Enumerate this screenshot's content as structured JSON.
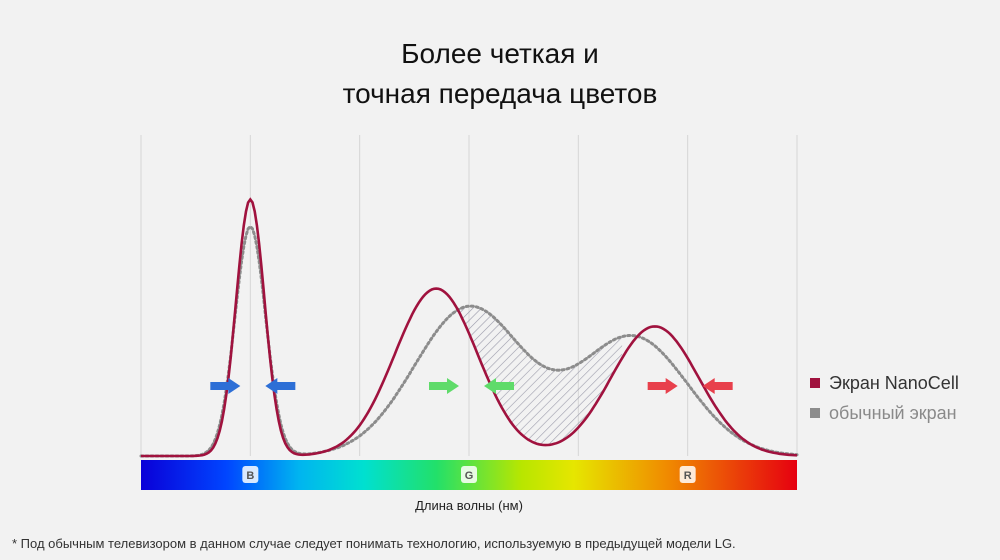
{
  "title": {
    "line1": "Более четкая и",
    "line2": "точная передача цветов"
  },
  "legend": {
    "nanocell": "Экран NanoCell",
    "regular": "обычный экран"
  },
  "footnote": "* Под обычным телевизором в данном случае следует понимать технологию, используемую в предыдущей модели LG.",
  "colors": {
    "nanocell": "#a0123e",
    "regular": "#8c8c8c",
    "blue_arrow": "#2d6fd6",
    "green_arrow": "#5fdb6a",
    "red_arrow": "#e8404c"
  },
  "chart_data": {
    "type": "line",
    "xlabel": "Длина волны (нм)",
    "ylabel": "",
    "spectrum_labels": [
      "B",
      "G",
      "R"
    ],
    "x": [
      0,
      1,
      2,
      3,
      4,
      5,
      6
    ],
    "xlim": [
      0,
      6
    ],
    "ylim": [
      0,
      1
    ],
    "grid": true,
    "legend_position": "right",
    "series": [
      {
        "name": "Экран NanoCell",
        "style": "solid",
        "peaks": [
          {
            "center": 1.0,
            "height": 0.95,
            "width": 0.13
          },
          {
            "center": 2.7,
            "height": 0.62,
            "width": 0.38
          },
          {
            "center": 4.7,
            "height": 0.48,
            "width": 0.4
          }
        ]
      },
      {
        "name": "обычный экран",
        "style": "dotted",
        "peaks": [
          {
            "center": 1.0,
            "height": 0.85,
            "width": 0.14
          },
          {
            "center": 3.0,
            "height": 0.55,
            "width": 0.5
          },
          {
            "center": 4.5,
            "height": 0.44,
            "width": 0.5
          }
        ]
      }
    ],
    "annotations": [
      {
        "group": "B",
        "arrow_pairs_toward": 1.0,
        "color": "blue"
      },
      {
        "group": "G",
        "arrow_pairs_toward": 3.0,
        "color": "green"
      },
      {
        "group": "R",
        "arrow_pairs_toward": 5.0,
        "color": "red"
      }
    ]
  }
}
